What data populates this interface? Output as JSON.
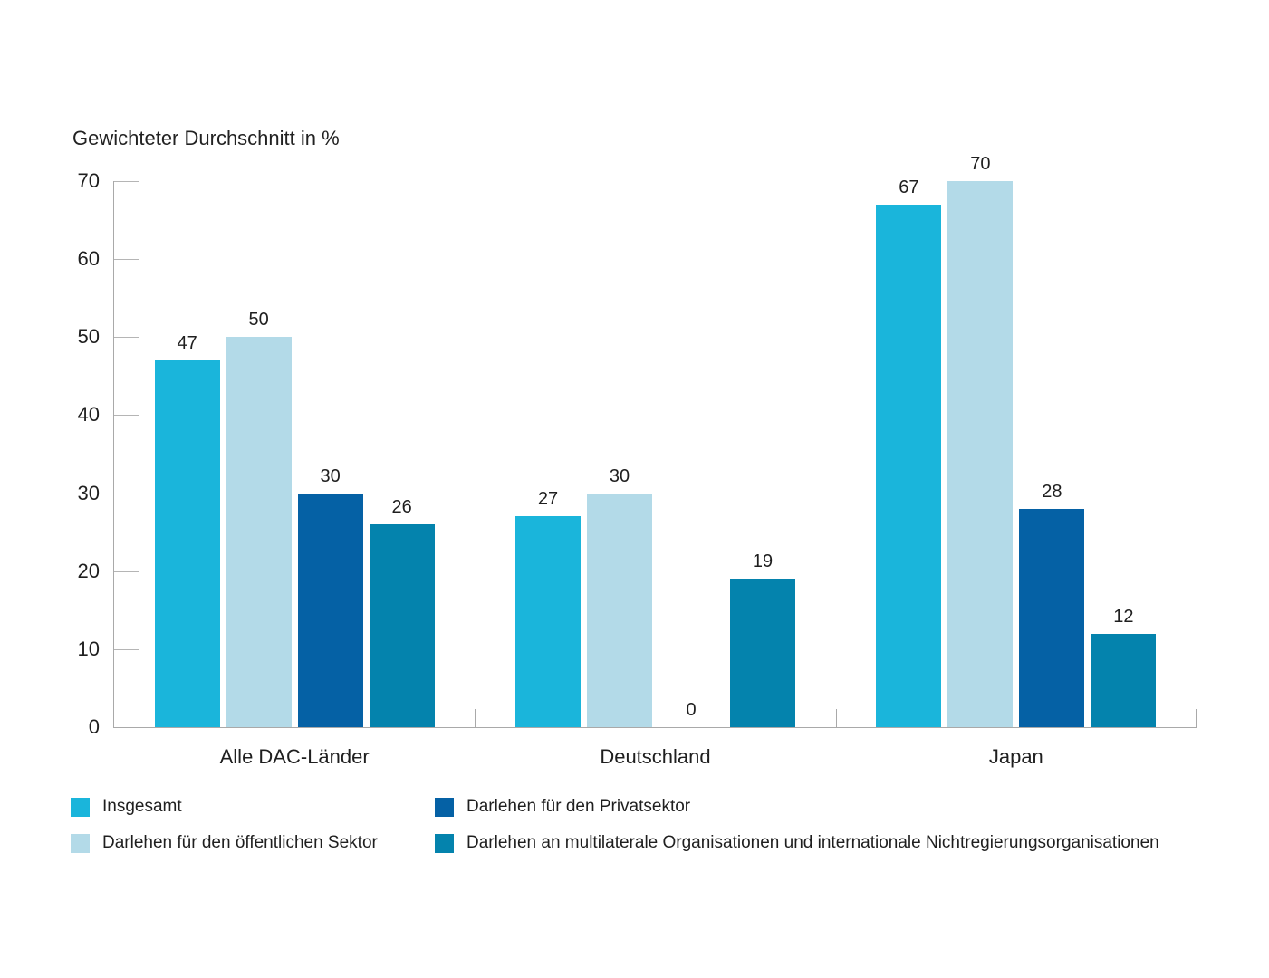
{
  "chart_data": {
    "type": "bar",
    "title": "Gewichteter Durchschnitt in %",
    "categories": [
      "Alle DAC-Länder",
      "Deutschland",
      "Japan"
    ],
    "series": [
      {
        "name": "Insgesamt",
        "color": "#1AB5DB",
        "values": [
          47,
          27,
          67
        ]
      },
      {
        "name": "Darlehen für den öffentlichen Sektor",
        "color": "#B3DAE8",
        "values": [
          50,
          30,
          70
        ]
      },
      {
        "name": "Darlehen für den Privatsektor",
        "color": "#0561A5",
        "values": [
          30,
          0,
          28
        ]
      },
      {
        "name": "Darlehen an multilaterale Organisationen und internationale Nichtregierungsorganisationen",
        "color": "#0483AD",
        "values": [
          26,
          19,
          12
        ]
      }
    ],
    "ylim": [
      0,
      70
    ],
    "yticks": [
      0,
      10,
      20,
      30,
      40,
      50,
      60,
      70
    ],
    "grid": false,
    "legend_position": "bottom",
    "legend_order": [
      0,
      2,
      1,
      3
    ],
    "axis_color": "#a9a9a9"
  }
}
